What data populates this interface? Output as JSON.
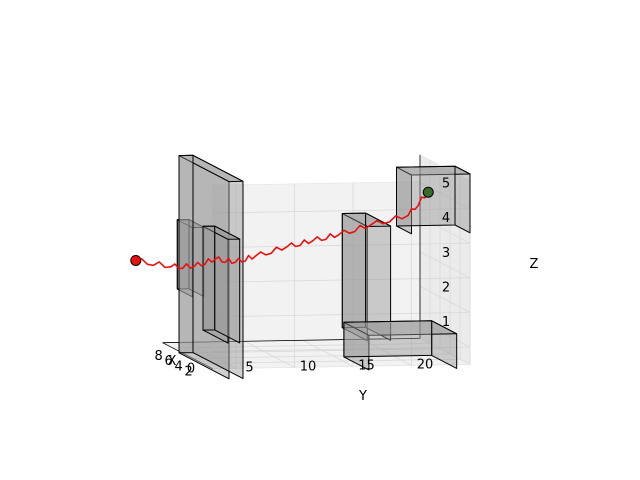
{
  "chart_data": {
    "type": "3d-line",
    "xlabel": "X",
    "ylabel": "Y",
    "zlabel": "Z",
    "x_ticks": [
      "2",
      "4",
      "6",
      "8"
    ],
    "y_ticks": [
      "0",
      "5",
      "10",
      "15",
      "20"
    ],
    "z_ticks": [
      "1",
      "2",
      "3",
      "4",
      "5"
    ],
    "xlim": [
      0,
      10
    ],
    "ylim": [
      -2,
      20
    ],
    "zlim": [
      0.5,
      5.8
    ],
    "grid": true,
    "path_color": "#e8110f",
    "start_color": "#e8110f",
    "goal_color": "#3a6b2a",
    "path": [
      [
        6.0,
        -6.0,
        3.2
      ],
      [
        6.0,
        -3.0,
        3.0
      ],
      [
        6.0,
        -1.0,
        3.0
      ],
      [
        6.0,
        0.8,
        3.2
      ],
      [
        6.0,
        2.5,
        3.1
      ],
      [
        5.5,
        4.0,
        3.3
      ],
      [
        5.0,
        6.5,
        3.6
      ],
      [
        4.5,
        8.5,
        3.8
      ],
      [
        4.0,
        10.5,
        4.0
      ],
      [
        3.5,
        13.0,
        4.3
      ],
      [
        3.0,
        16.0,
        4.6
      ],
      [
        2.5,
        17.5,
        5.3
      ]
    ],
    "start": [
      6.0,
      -6.0,
      3.2
    ],
    "goal": [
      2.5,
      17.5,
      5.3
    ],
    "obstacles": [
      {
        "x": [
          0,
          10
        ],
        "y": [
          -0.6,
          0.6
        ],
        "z": [
          0.2,
          5.9
        ]
      },
      {
        "x": [
          5,
          8
        ],
        "y": [
          -1.6,
          -0.6
        ],
        "z": [
          2.2,
          4.2
        ]
      },
      {
        "x": [
          3,
          8
        ],
        "y": [
          0.6,
          1.6
        ],
        "z": [
          1.0,
          4.0
        ]
      },
      {
        "x": [
          0,
          3
        ],
        "y": [
          15.0,
          20.0
        ],
        "z": [
          4.3,
          6.0
        ]
      },
      {
        "x": [
          3,
          8
        ],
        "y": [
          12.5,
          14.5
        ],
        "z": [
          1.0,
          4.3
        ]
      },
      {
        "x": [
          5,
          10
        ],
        "y": [
          13.5,
          21.0
        ],
        "z": [
          0.0,
          1.0
        ]
      }
    ]
  }
}
